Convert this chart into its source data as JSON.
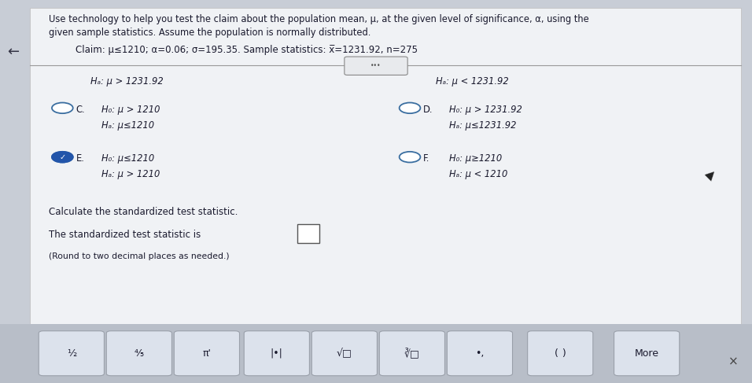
{
  "bg_color": "#c8cdd6",
  "panel_color": "#f0f2f5",
  "title_text1": "Use technology to help you test the claim about the population mean, μ, at the given level of significance, α, using the",
  "title_text2": "given sample statistics. Assume the population is normally distributed.",
  "claim_line": "Claim: μ≤1210; α=0.06; σ=195.35. Sample statistics: x̅=1231.92, n=275",
  "text_color": "#1a1a2e",
  "radio_outline_color": "#3a6ea0",
  "check_color": "#2255aa",
  "divider_color": "#999999",
  "toolbar_bg": "#b8bec8",
  "toolbar_btn_bg": "#dce2ec",
  "toolbar_btn_border": "#9aa0aa",
  "close_x_color": "#444444",
  "arrow_color": "#333344",
  "option_A_label": "Hₐ: μ > 1231.92",
  "option_B_label": "Hₐ: μ < 1231.92",
  "option_C_line1": "H₀: μ > 1210",
  "option_C_line2": "Hₐ: μ≤1210",
  "option_D_line1": "H₀: μ > 1231.92",
  "option_D_line2": "Hₐ: μ≤1231.92",
  "option_E_line1": "H₀: μ≤1210",
  "option_E_line2": "Hₐ: μ > 1210",
  "option_F_line1": "H₀: μ≥1210",
  "option_F_line2": "Hₐ: μ < 1210",
  "calc_text": "Calculate the standardized test statistic.",
  "result_text": "The standardized test statistic is",
  "bottom_text": "(Round to two decimal places as needed.)",
  "toolbar_buttons": [
    "½",
    "⅘",
    "π'",
    "|•|",
    "√□",
    "∛□",
    "•,",
    "(  )",
    "More"
  ],
  "figw": 9.56,
  "figh": 4.87,
  "dpi": 100
}
